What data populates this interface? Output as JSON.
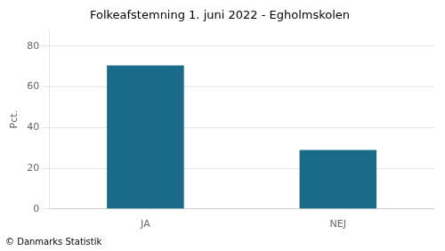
{
  "chart_data": {
    "type": "bar",
    "title": "Folkeafstemning 1. juni 2022 - Egholmskolen",
    "categories": [
      "JA",
      "NEJ"
    ],
    "values": [
      70.5,
      29.0
    ],
    "color": "#1a6b8a",
    "ylabel": "Pct.",
    "ylim": [
      0,
      88
    ],
    "yticks": [
      0,
      20,
      40,
      60,
      80
    ],
    "grid": true,
    "annotations": [
      "© Danmarks Statistik"
    ]
  }
}
